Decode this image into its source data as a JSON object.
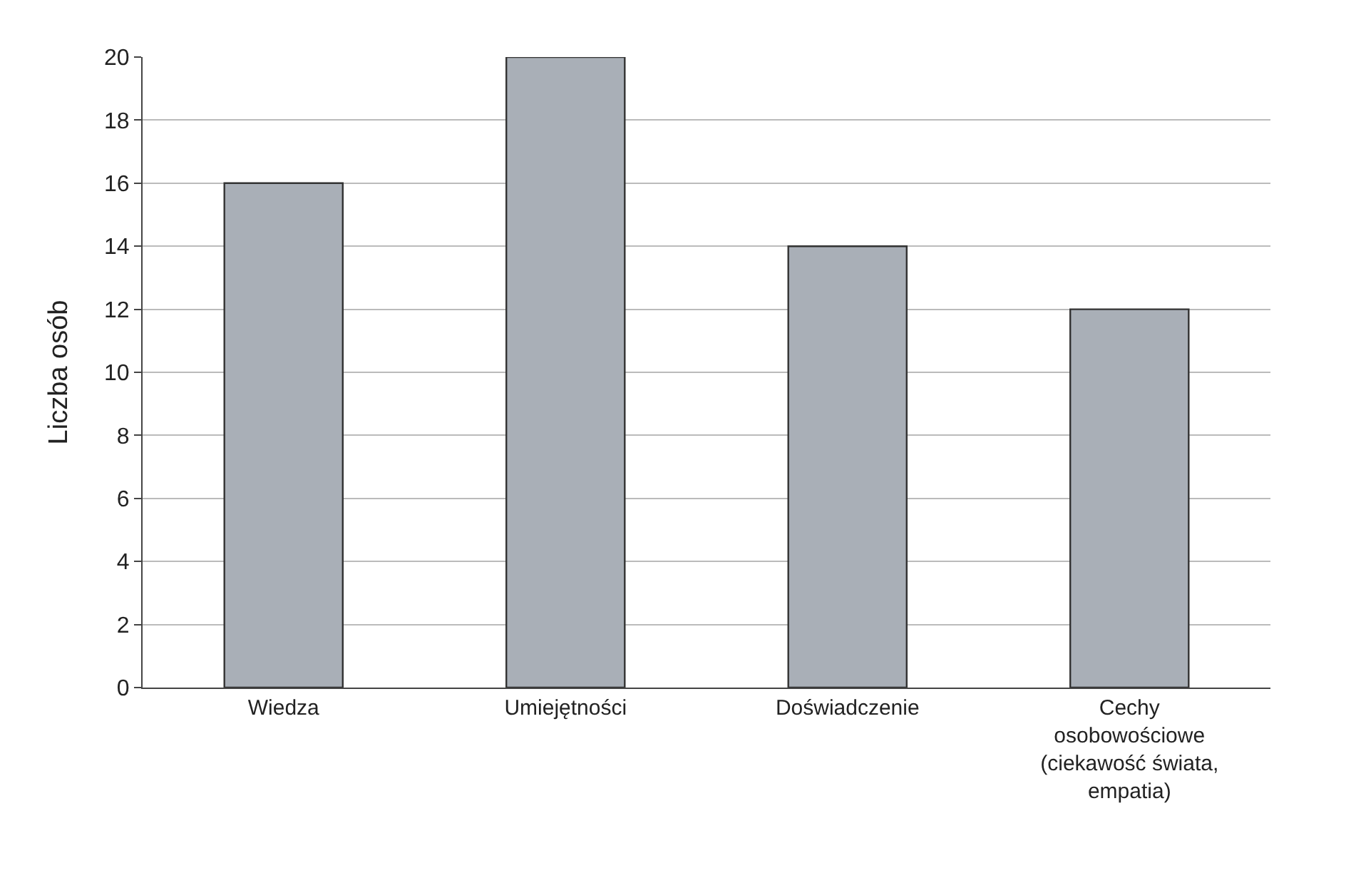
{
  "chart_data": {
    "type": "bar",
    "ylabel": "Liczba osób",
    "categories": [
      "Wiedza",
      "Umiejętności",
      "Doświadczenie",
      "Cechy osobowościowe (ciekawość świata, empatia)"
    ],
    "values": [
      16,
      20,
      14,
      12
    ],
    "color": "#a9afb7",
    "ylim": [
      0,
      20
    ],
    "yticks": [
      0,
      2,
      4,
      6,
      8,
      10,
      12,
      14,
      16,
      18,
      20
    ],
    "grid": "y"
  }
}
